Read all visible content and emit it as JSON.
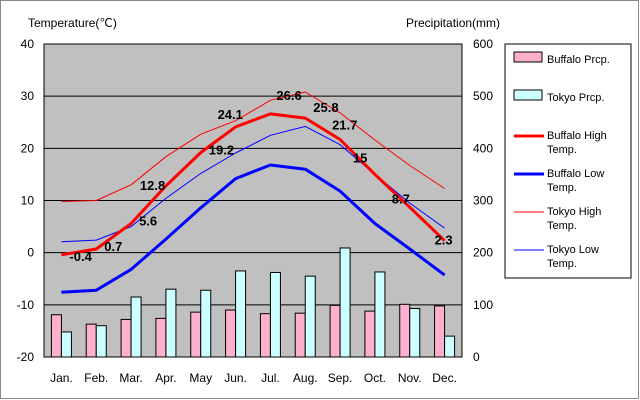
{
  "chart_data": {
    "type": "bar+line",
    "left_axis_label": "Temperature(℃)",
    "right_axis_label": "Precipitation(mm)",
    "categories": [
      "Jan.",
      "Feb.",
      "Mar.",
      "Apr.",
      "May",
      "Jun.",
      "Jul.",
      "Aug.",
      "Sep.",
      "Oct.",
      "Nov.",
      "Dec."
    ],
    "left_ylim": [
      -20,
      40
    ],
    "left_ticks": [
      -20,
      -10,
      0,
      10,
      20,
      30,
      40
    ],
    "right_ylim": [
      0,
      600
    ],
    "right_ticks": [
      0,
      100,
      200,
      300,
      400,
      500,
      600
    ],
    "grid": true,
    "legend_position": "right",
    "series": [
      {
        "name": "Buffalo Prcp.",
        "kind": "bar",
        "axis": "right",
        "color": "#ffb0cc",
        "values": [
          81,
          63,
          72,
          74,
          86,
          90,
          83,
          84,
          99,
          88,
          101,
          98
        ]
      },
      {
        "name": "Tokyo Prcp.",
        "kind": "bar",
        "axis": "right",
        "color": "#ccffff",
        "values": [
          48,
          60,
          115,
          130,
          128,
          165,
          162,
          155,
          209,
          163,
          93,
          40
        ]
      },
      {
        "name": "Buffalo High Temp.",
        "kind": "line",
        "axis": "left",
        "color": "#ff0000",
        "width": 3,
        "values": [
          -0.4,
          0.7,
          5.6,
          12.8,
          19.2,
          24.1,
          26.6,
          25.8,
          21.7,
          15,
          8.7,
          2.3
        ],
        "labels": [
          "-0.4",
          "0.7",
          "5.6",
          "12.8",
          "19.2",
          "24.1",
          "26.6",
          "25.8",
          "21.7",
          "15",
          "8.7",
          "2.3"
        ]
      },
      {
        "name": "Buffalo Low Temp.",
        "kind": "line",
        "axis": "left",
        "color": "#0000ff",
        "width": 3,
        "values": [
          -7.6,
          -7.2,
          -3.2,
          2.6,
          8.6,
          14.2,
          16.8,
          16.0,
          11.8,
          5.6,
          0.7,
          -4.3
        ]
      },
      {
        "name": "Tokyo High Temp.",
        "kind": "line",
        "axis": "left",
        "color": "#ff0000",
        "width": 1,
        "values": [
          9.8,
          10.0,
          13.0,
          18.4,
          22.7,
          25.3,
          29.2,
          30.8,
          26.8,
          21.6,
          16.7,
          12.3
        ]
      },
      {
        "name": "Tokyo Low Temp.",
        "kind": "line",
        "axis": "left",
        "color": "#0000ff",
        "width": 1,
        "values": [
          2.1,
          2.4,
          5.0,
          10.4,
          15.2,
          19.1,
          22.5,
          24.2,
          20.7,
          15.0,
          9.5,
          4.7
        ]
      }
    ]
  },
  "legend": [
    {
      "label": "Buffalo Prcp.",
      "kind": "bar",
      "color": "#ffb0cc"
    },
    {
      "label": "Tokyo Prcp.",
      "kind": "bar",
      "color": "#ccffff"
    },
    {
      "label": "Buffalo High Temp.",
      "kind": "line",
      "color": "#ff0000",
      "width": 3
    },
    {
      "label": "Buffalo Low Temp.",
      "kind": "line",
      "color": "#0000ff",
      "width": 3
    },
    {
      "label": "Tokyo High Temp.",
      "kind": "line",
      "color": "#ff0000",
      "width": 1
    },
    {
      "label": "Tokyo Low Temp.",
      "kind": "line",
      "color": "#0000ff",
      "width": 1
    }
  ]
}
